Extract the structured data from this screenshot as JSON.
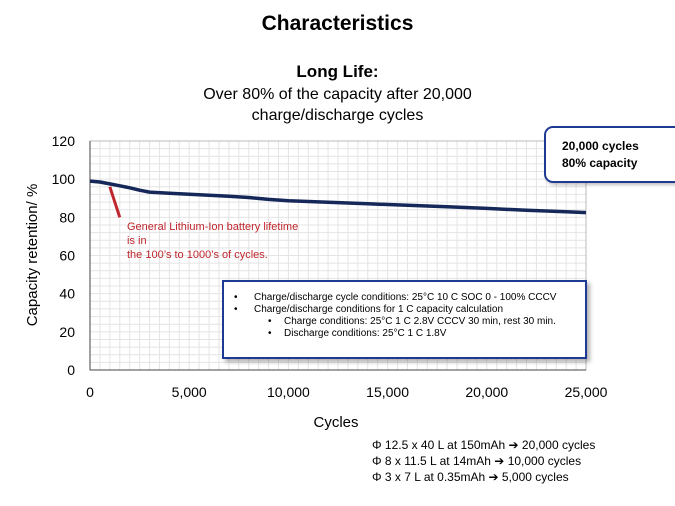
{
  "slide": {
    "title": "Characteristics",
    "headline": "Long Life:",
    "subtitle_lines": [
      "Over 80% of the capacity after 20,000",
      "charge/discharge cycles"
    ]
  },
  "callout": {
    "line1": "20,000 cycles",
    "line2": "80%  capacity"
  },
  "annotation": {
    "text_lines": [
      "General Lithium-Ion battery lifetime is in",
      "the 100’s to 1000’s of cycles."
    ],
    "color": "#c0262d"
  },
  "conditions": {
    "items": [
      "Charge/discharge cycle conditions: 25°C 10 C  SOC 0 - 100% CCCV",
      "Charge/discharge conditions for 1 C capacity calculation"
    ],
    "subitems": [
      "Charge conditions: 25°C  1 C  2.8V CCCV  30 min,  rest 30 min.",
      "Discharge conditions: 25°C  1 C  1.8V"
    ]
  },
  "cell_notes": [
    "Φ 12.5 x 40 L at 150mAh ➔ 20,000 cycles",
    "Φ 8 x 11.5 L at 14mAh ➔ 10,000 cycles",
    "Φ 3 x 7 L at 0.35mAh ➔ 5,000 cycles"
  ],
  "chart_data": {
    "type": "line",
    "title": "",
    "xlabel": "Cycles",
    "ylabel": "Capacity retention/  %",
    "xlim": [
      0,
      25000
    ],
    "ylim": [
      0,
      120
    ],
    "x_ticks": [
      0,
      5000,
      10000,
      15000,
      20000,
      25000
    ],
    "x_tick_labels": [
      "0",
      "5,000",
      "10,000",
      "15,000",
      "20,000",
      "25,000"
    ],
    "y_ticks": [
      0,
      20,
      40,
      60,
      80,
      100,
      120
    ],
    "y_tick_labels": [
      "0",
      "20",
      "40",
      "60",
      "80",
      "100",
      "120"
    ],
    "grid": true,
    "line_color": "#16285a",
    "series": [
      {
        "x": [
          0,
          500,
          1000,
          1500,
          2000,
          2500,
          3000,
          4000,
          5000,
          6000,
          7000,
          8000,
          9000,
          10000,
          12000,
          14000,
          16000,
          18000,
          20000,
          22000,
          24000,
          25000
        ],
        "values": [
          99,
          98.5,
          97.5,
          96.5,
          95.5,
          94.2,
          93.2,
          92.6,
          92.1,
          91.6,
          91.0,
          90.4,
          89.4,
          88.7,
          87.9,
          87.1,
          86.3,
          85.5,
          84.7,
          83.7,
          82.9,
          82.5
        ]
      }
    ]
  }
}
